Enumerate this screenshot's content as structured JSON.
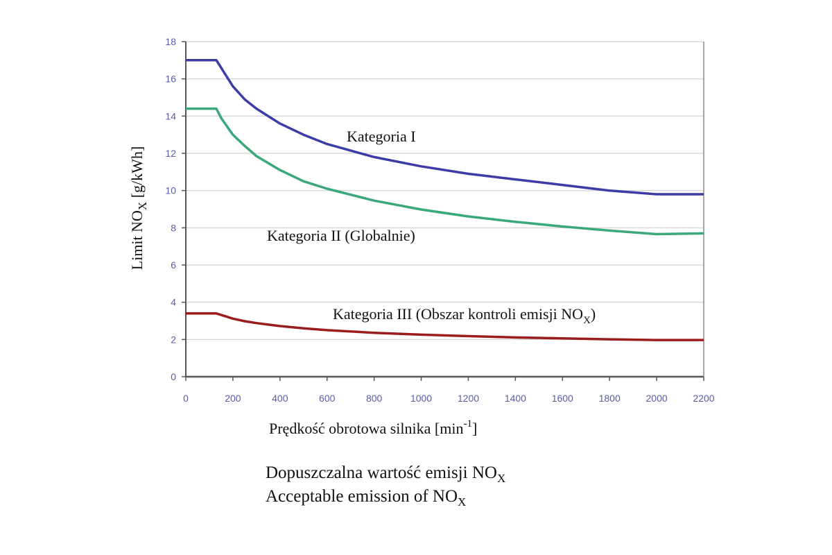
{
  "chart_data": {
    "type": "line",
    "title": "",
    "xlabel": "Prędkość obrotowa silnika [min",
    "xlabel_sup": "-1",
    "xlabel_end": "]",
    "ylabel": "Limit NO",
    "ylabel_sub": "X",
    "ylabel_end": " [g/kWh]",
    "xlim": [
      0,
      2200
    ],
    "ylim": [
      0,
      18
    ],
    "xticks": [
      0,
      200,
      400,
      600,
      800,
      1000,
      1200,
      1400,
      1600,
      1800,
      2000,
      2200
    ],
    "yticks": [
      0,
      2,
      4,
      6,
      8,
      10,
      12,
      14,
      16,
      18
    ],
    "grid": true,
    "legend": "none",
    "x": [
      0,
      130,
      150,
      200,
      250,
      300,
      400,
      500,
      600,
      800,
      1000,
      1200,
      1400,
      1600,
      1800,
      2000,
      2200
    ],
    "series": [
      {
        "name": "Kategoria I",
        "color": "#3c3ca6",
        "values": [
          17.0,
          17.0,
          16.6,
          15.6,
          14.9,
          14.4,
          13.6,
          13.0,
          12.5,
          11.8,
          11.3,
          10.9,
          10.6,
          10.3,
          10.0,
          9.8,
          9.8
        ]
      },
      {
        "name": "Kategoria II (Globalnie)",
        "color": "#3aa87a",
        "values": [
          14.4,
          14.4,
          13.9,
          13.0,
          12.4,
          11.85,
          11.1,
          10.5,
          10.1,
          9.46,
          8.98,
          8.61,
          8.32,
          8.07,
          7.85,
          7.66,
          7.7
        ]
      },
      {
        "name": "Kategoria III (Obszar kontroli emisji NO",
        "name_sub": "X",
        "name_end": ")",
        "color": "#9a1c1c",
        "values": [
          3.4,
          3.4,
          3.32,
          3.12,
          2.98,
          2.88,
          2.72,
          2.6,
          2.5,
          2.36,
          2.26,
          2.18,
          2.11,
          2.06,
          2.01,
          1.97,
          1.97
        ]
      }
    ]
  },
  "caption": {
    "line1": "Dopuszczalna wartość emisji NO",
    "line2": "Acceptable emission of NO",
    "sub": "X"
  }
}
